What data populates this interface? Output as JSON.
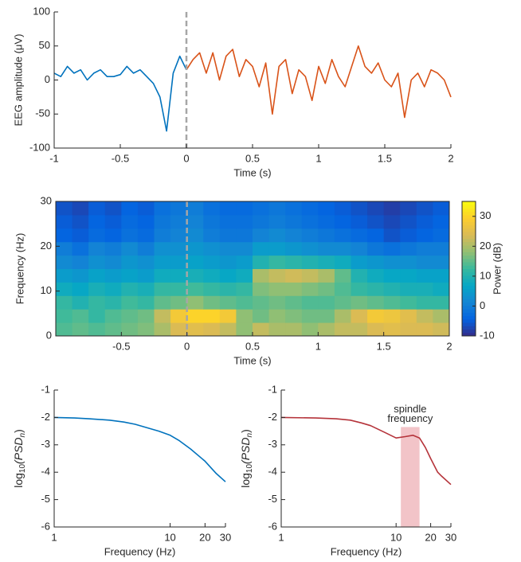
{
  "chart_data": [
    {
      "type": "line",
      "xlabel": "Time (s)",
      "ylabel": "EEG amplitude (μV)",
      "xlim": [
        -1,
        2
      ],
      "ylim": [
        -100,
        100
      ],
      "xticks": [
        -1,
        -0.5,
        0,
        0.5,
        1,
        1.5,
        2
      ],
      "yticks": [
        -100,
        -50,
        0,
        50,
        100
      ],
      "vline": 0,
      "series": [
        {
          "color": "#0072bd",
          "x": [
            -1,
            -0.95,
            -0.9,
            -0.85,
            -0.8,
            -0.75,
            -0.7,
            -0.65,
            -0.6,
            -0.55,
            -0.5,
            -0.45,
            -0.4,
            -0.35,
            -0.3,
            -0.25,
            -0.2,
            -0.15,
            -0.1,
            -0.05,
            0
          ],
          "values": [
            10,
            5,
            20,
            10,
            15,
            0,
            10,
            15,
            5,
            5,
            8,
            20,
            10,
            15,
            5,
            -5,
            -25,
            -75,
            10,
            35,
            15
          ]
        },
        {
          "color": "#d95319",
          "x": [
            0,
            0.05,
            0.1,
            0.15,
            0.2,
            0.25,
            0.3,
            0.35,
            0.4,
            0.45,
            0.5,
            0.55,
            0.6,
            0.65,
            0.7,
            0.75,
            0.8,
            0.85,
            0.9,
            0.95,
            1,
            1.05,
            1.1,
            1.15,
            1.2,
            1.25,
            1.3,
            1.35,
            1.4,
            1.45,
            1.5,
            1.55,
            1.6,
            1.65,
            1.7,
            1.75,
            1.8,
            1.85,
            1.9,
            1.95,
            2
          ],
          "values": [
            15,
            30,
            40,
            10,
            40,
            0,
            35,
            45,
            5,
            30,
            20,
            -10,
            25,
            -50,
            20,
            30,
            -20,
            15,
            5,
            -30,
            20,
            -5,
            30,
            5,
            -10,
            20,
            50,
            20,
            10,
            25,
            0,
            -10,
            10,
            -55,
            0,
            10,
            -10,
            15,
            10,
            0,
            -25
          ]
        }
      ]
    },
    {
      "type": "heatmap",
      "xlabel": "Time (s)",
      "ylabel": "Frequency (Hz)",
      "colorbar_label": "Power (dB)",
      "xlim": [
        -1,
        2
      ],
      "ylim": [
        0,
        30
      ],
      "xticks": [
        -0.5,
        0,
        0.5,
        1,
        1.5,
        2
      ],
      "yticks": [
        0,
        10,
        20,
        30
      ],
      "clim": [
        -10,
        35
      ],
      "cticks": [
        -10,
        0,
        10,
        20,
        30
      ],
      "colormap": "parula",
      "vline": 0,
      "z": [
        [
          14,
          15,
          14,
          15,
          16,
          17,
          20,
          24,
          25,
          24,
          22,
          18,
          22,
          20,
          20,
          18,
          20,
          22,
          22,
          24,
          25,
          24,
          24,
          23
        ],
        [
          13,
          14,
          12,
          14,
          15,
          16,
          22,
          28,
          30,
          30,
          28,
          18,
          16,
          18,
          17,
          16,
          16,
          20,
          24,
          28,
          27,
          25,
          22,
          20
        ],
        [
          12,
          10,
          12,
          11,
          13,
          12,
          15,
          16,
          18,
          16,
          15,
          14,
          15,
          16,
          15,
          14,
          14,
          15,
          16,
          15,
          14,
          13,
          12,
          12
        ],
        [
          8,
          7,
          9,
          8,
          10,
          9,
          12,
          12,
          13,
          12,
          11,
          12,
          17,
          18,
          18,
          17,
          16,
          14,
          12,
          11,
          10,
          9,
          9,
          8
        ],
        [
          5,
          4,
          6,
          5,
          6,
          5,
          8,
          8,
          9,
          8,
          7,
          8,
          20,
          22,
          23,
          22,
          20,
          15,
          10,
          8,
          7,
          7,
          6,
          6
        ],
        [
          2,
          1,
          3,
          2,
          4,
          3,
          5,
          5,
          6,
          5,
          4,
          5,
          10,
          12,
          11,
          10,
          9,
          8,
          5,
          4,
          3,
          3,
          2,
          2
        ],
        [
          0,
          -2,
          1,
          0,
          2,
          0,
          3,
          3,
          4,
          3,
          2,
          2,
          5,
          5,
          4,
          3,
          2,
          2,
          1,
          -1,
          -2,
          -1,
          0,
          0
        ],
        [
          -4,
          -5,
          -3,
          -4,
          -2,
          -3,
          0,
          1,
          2,
          0,
          -1,
          -1,
          1,
          2,
          1,
          0,
          -1,
          -2,
          -3,
          -4,
          -6,
          -5,
          -4,
          -3
        ],
        [
          -5,
          -6,
          -4,
          -5,
          -3,
          -4,
          -1,
          0,
          1,
          -1,
          -2,
          -2,
          -1,
          0,
          -1,
          -2,
          -3,
          -4,
          -5,
          -6,
          -7,
          -6,
          -5,
          -4
        ],
        [
          -6,
          -7,
          -5,
          -6,
          -4,
          -5,
          -2,
          -1,
          0,
          -2,
          -3,
          -3,
          -2,
          -1,
          -2,
          -3,
          -4,
          -5,
          -6,
          -7,
          -8,
          -7,
          -6,
          -5
        ]
      ]
    },
    {
      "type": "line",
      "xlabel": "Frequency (Hz)",
      "ylabel_parts": [
        {
          "text": "log"
        },
        {
          "text": "10",
          "sub": true
        },
        {
          "text": "(PSD"
        },
        {
          "text": "n",
          "sub": true
        },
        {
          "text": ")"
        }
      ],
      "xscale": "log",
      "xlim": [
        1,
        30
      ],
      "ylim": [
        -6,
        -1
      ],
      "xticks": [
        1,
        10,
        20,
        30
      ],
      "yticks": [
        -1,
        -2,
        -3,
        -4,
        -5,
        -6
      ],
      "series": [
        {
          "color": "#0072bd",
          "x": [
            1,
            1.5,
            2,
            3,
            4,
            5,
            6,
            8,
            10,
            12,
            15,
            20,
            25,
            30
          ],
          "values": [
            -2,
            -2.02,
            -2.05,
            -2.1,
            -2.17,
            -2.25,
            -2.35,
            -2.5,
            -2.65,
            -2.85,
            -3.15,
            -3.6,
            -4.05,
            -4.35
          ]
        }
      ]
    },
    {
      "type": "line",
      "xlabel": "Frequency (Hz)",
      "ylabel_parts": [
        {
          "text": "log"
        },
        {
          "text": "10",
          "sub": true
        },
        {
          "text": "(PSD"
        },
        {
          "text": "n",
          "sub": true
        },
        {
          "text": ")"
        }
      ],
      "xscale": "log",
      "xlim": [
        1,
        30
      ],
      "ylim": [
        -6,
        -1
      ],
      "xticks": [
        1,
        10,
        20,
        30
      ],
      "yticks": [
        -1,
        -2,
        -3,
        -4,
        -5,
        -6
      ],
      "band": {
        "label": [
          "spindle",
          "frequency"
        ],
        "x": [
          11,
          16
        ],
        "y": [
          -6,
          -2.35
        ],
        "color": "#f2c4c8"
      },
      "series": [
        {
          "color": "#b5333a",
          "x": [
            1,
            2,
            3,
            4,
            5,
            6,
            8,
            10,
            12,
            14,
            16,
            18,
            20,
            23,
            25,
            30
          ],
          "values": [
            -2,
            -2.02,
            -2.05,
            -2.1,
            -2.2,
            -2.3,
            -2.55,
            -2.75,
            -2.7,
            -2.65,
            -2.75,
            -3.1,
            -3.5,
            -4,
            -4.15,
            -4.45
          ]
        }
      ]
    }
  ]
}
